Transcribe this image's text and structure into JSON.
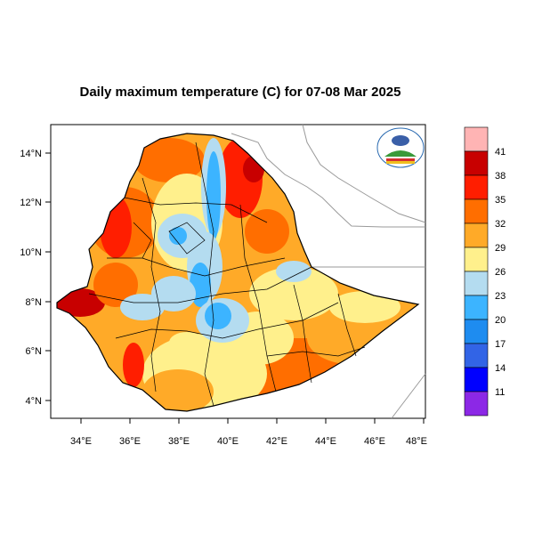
{
  "title": "Daily maximum temperature (C) for 07-08 Mar 2025",
  "map": {
    "x_ticks": [
      "34°E",
      "36°E",
      "38°E",
      "40°E",
      "42°E",
      "44°E",
      "46°E",
      "48°E"
    ],
    "y_ticks": [
      "14°N",
      "12°N",
      "10°N",
      "8°N",
      "6°N",
      "4°N"
    ],
    "lon_range": [
      32.9,
      48.3
    ],
    "lat_range": [
      3.2,
      15.0
    ]
  },
  "legend": {
    "labels": [
      "41",
      "38",
      "35",
      "32",
      "29",
      "26",
      "23",
      "20",
      "17",
      "14",
      "11"
    ],
    "colors": [
      "#ffb4b4",
      "#c80000",
      "#ff1e00",
      "#ff6e00",
      "#ffaa28",
      "#fff08c",
      "#b4dcf0",
      "#3cb4ff",
      "#1e8cf0",
      "#3264e6",
      "#0000ff",
      "#8c28e6"
    ]
  },
  "logo": {
    "icon": "ethiopian-meteorology-institute-logo"
  }
}
